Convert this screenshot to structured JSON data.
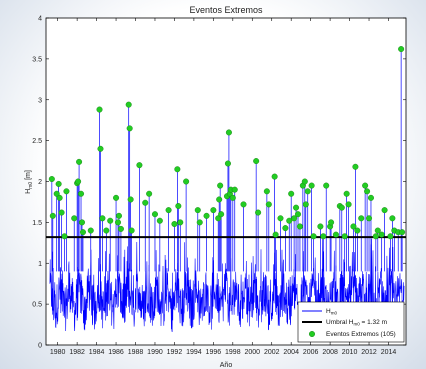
{
  "chart_data": {
    "type": "line",
    "title": "Eventos Extremos",
    "xlabel": "Año",
    "ylabel": "H",
    "ylabel_sub": "m0",
    "ylabel_unit": " [m]",
    "xlim": [
      1978.8,
      2015.8
    ],
    "ylim": [
      0,
      4
    ],
    "xticks": [
      "1980",
      "1982",
      "1984",
      "1986",
      "1988",
      "1990",
      "1992",
      "1994",
      "1996",
      "1998",
      "2000",
      "2002",
      "2004",
      "2006",
      "2008",
      "2010",
      "2012",
      "2014"
    ],
    "yticks": [
      "0",
      "0.5",
      "1",
      "1.5",
      "2",
      "2.5",
      "3",
      "3.5",
      "4"
    ],
    "threshold": 1.32,
    "colors": {
      "series": "#0000ff",
      "threshold": "#000000",
      "events": "#22cc22"
    },
    "legend": {
      "position": "bottom-right",
      "entries": [
        {
          "main": "H",
          "sub": "m0",
          "rest": ""
        },
        {
          "main": "Umbral H",
          "sub": "m0",
          "rest": " = 1.32 m"
        },
        {
          "main": "Eventos Extremos (105)",
          "sub": "",
          "rest": ""
        }
      ]
    },
    "series": [
      {
        "name": "Hm0",
        "description": "hourly wave height time series, baseline approx. 0.3–1.0 m"
      }
    ],
    "events": [
      [
        1979.4,
        2.03
      ],
      [
        1979.5,
        1.58
      ],
      [
        1979.9,
        1.85
      ],
      [
        1980.1,
        1.97
      ],
      [
        1980.2,
        1.8
      ],
      [
        1980.4,
        1.62
      ],
      [
        1980.7,
        1.33
      ],
      [
        1980.9,
        1.88
      ],
      [
        1981.7,
        1.55
      ],
      [
        1982.0,
        1.98
      ],
      [
        1982.1,
        2.0
      ],
      [
        1982.2,
        2.24
      ],
      [
        1982.4,
        1.85
      ],
      [
        1982.5,
        1.5
      ],
      [
        1982.6,
        1.38
      ],
      [
        1983.4,
        1.4
      ],
      [
        1984.3,
        2.88
      ],
      [
        1984.4,
        2.4
      ],
      [
        1984.6,
        1.55
      ],
      [
        1985.0,
        1.4
      ],
      [
        1985.4,
        1.52
      ],
      [
        1986.0,
        1.8
      ],
      [
        1986.2,
        1.5
      ],
      [
        1986.3,
        1.58
      ],
      [
        1986.5,
        1.42
      ],
      [
        1987.3,
        2.94
      ],
      [
        1987.4,
        2.65
      ],
      [
        1987.5,
        1.78
      ],
      [
        1987.6,
        1.4
      ],
      [
        1988.4,
        2.2
      ],
      [
        1989.0,
        1.74
      ],
      [
        1989.4,
        1.85
      ],
      [
        1990.0,
        1.6
      ],
      [
        1990.5,
        1.52
      ],
      [
        1991.4,
        1.65
      ],
      [
        1992.0,
        1.48
      ],
      [
        1992.3,
        2.15
      ],
      [
        1992.4,
        1.7
      ],
      [
        1992.6,
        1.5
      ],
      [
        1993.2,
        2.0
      ],
      [
        1994.4,
        1.65
      ],
      [
        1994.6,
        1.5
      ],
      [
        1995.3,
        1.58
      ],
      [
        1996.0,
        1.65
      ],
      [
        1996.5,
        1.55
      ],
      [
        1996.6,
        1.78
      ],
      [
        1996.7,
        1.95
      ],
      [
        1996.8,
        1.6
      ],
      [
        1997.4,
        1.82
      ],
      [
        1997.5,
        2.22
      ],
      [
        1997.6,
        2.6
      ],
      [
        1997.7,
        1.85
      ],
      [
        1997.8,
        1.9
      ],
      [
        1998.0,
        1.8
      ],
      [
        1998.2,
        1.9
      ],
      [
        1999.1,
        1.72
      ],
      [
        2000.4,
        2.25
      ],
      [
        2000.6,
        1.62
      ],
      [
        2001.5,
        1.88
      ],
      [
        2001.7,
        1.72
      ],
      [
        2002.3,
        2.06
      ],
      [
        2002.4,
        1.35
      ],
      [
        2002.9,
        1.55
      ],
      [
        2003.4,
        1.43
      ],
      [
        2003.8,
        1.52
      ],
      [
        2004.0,
        1.85
      ],
      [
        2004.3,
        1.55
      ],
      [
        2004.5,
        1.68
      ],
      [
        2004.7,
        1.6
      ],
      [
        2004.9,
        1.45
      ],
      [
        2005.2,
        1.95
      ],
      [
        2005.4,
        2.0
      ],
      [
        2005.5,
        1.72
      ],
      [
        2005.7,
        1.88
      ],
      [
        2006.1,
        1.95
      ],
      [
        2006.3,
        1.33
      ],
      [
        2007.0,
        1.45
      ],
      [
        2007.3,
        1.33
      ],
      [
        2007.6,
        1.95
      ],
      [
        2008.0,
        1.45
      ],
      [
        2008.1,
        1.5
      ],
      [
        2008.6,
        1.35
      ],
      [
        2009.0,
        1.7
      ],
      [
        2009.2,
        1.68
      ],
      [
        2009.5,
        1.33
      ],
      [
        2009.7,
        1.85
      ],
      [
        2009.9,
        1.72
      ],
      [
        2010.4,
        1.45
      ],
      [
        2010.6,
        2.18
      ],
      [
        2010.8,
        1.4
      ],
      [
        2011.2,
        1.55
      ],
      [
        2011.6,
        1.95
      ],
      [
        2011.8,
        1.88
      ],
      [
        2012.0,
        1.55
      ],
      [
        2012.2,
        1.8
      ],
      [
        2012.7,
        1.33
      ],
      [
        2012.9,
        1.4
      ],
      [
        2013.3,
        1.35
      ],
      [
        2013.6,
        1.65
      ],
      [
        2014.2,
        1.33
      ],
      [
        2014.4,
        1.55
      ],
      [
        2014.6,
        1.4
      ],
      [
        2015.0,
        1.38
      ],
      [
        2015.3,
        3.62
      ],
      [
        2015.4,
        1.38
      ]
    ]
  }
}
